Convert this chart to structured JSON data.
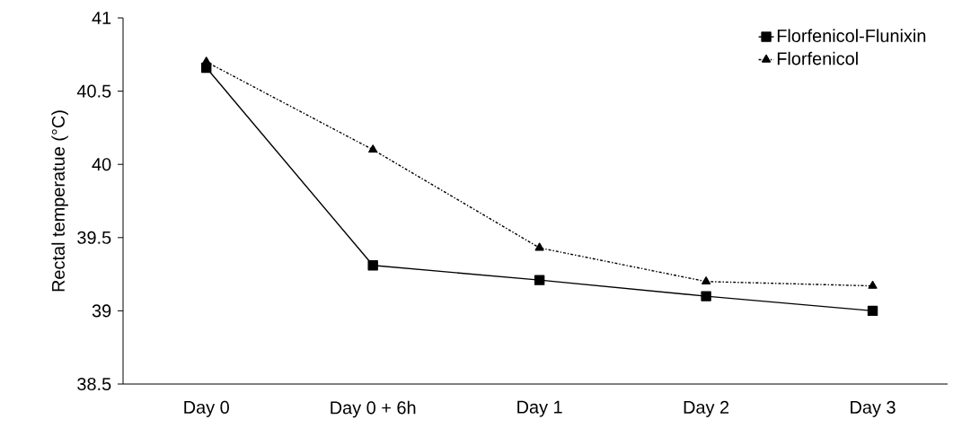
{
  "chart_data": {
    "type": "line",
    "ylabel": "Rectal temperatue (°C)",
    "categories": [
      "Day 0",
      "Day 0 + 6h",
      "Day 1",
      "Day 2",
      "Day 3"
    ],
    "series": [
      {
        "name": "Florfenicol-Flunixin",
        "color": "#000000",
        "values": [
          40.66,
          39.31,
          39.21,
          39.1,
          39.0
        ],
        "marker": "square",
        "line_style": "solid"
      },
      {
        "name": "Florfenicol",
        "color": "#000000",
        "values": [
          40.7,
          40.1,
          39.43,
          39.2,
          39.17
        ],
        "marker": "triangle",
        "line_style": "dashdot"
      }
    ],
    "ylim": [
      38.5,
      41
    ],
    "yticks": [
      38.5,
      39,
      39.5,
      40,
      40.5,
      41
    ],
    "grid": false,
    "legend": "top right"
  }
}
